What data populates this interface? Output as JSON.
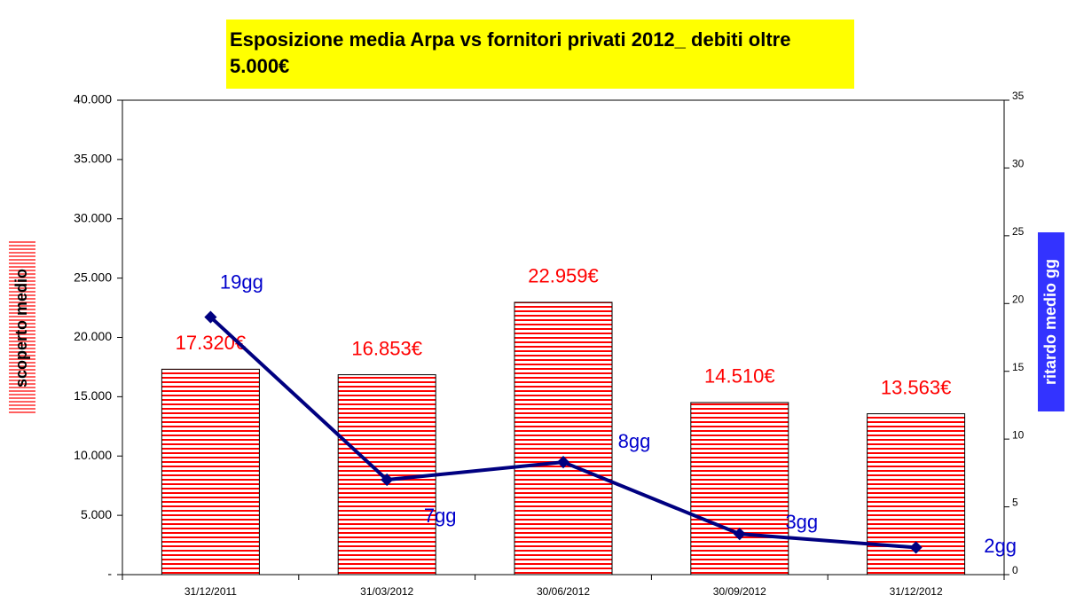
{
  "chart_data": {
    "type": "bar",
    "title": "Esposizione media Arpa vs fornitori privati 2012_ debiti oltre 5.000€",
    "y_label": "scoperto medio",
    "y2_label": "ritardo medio gg",
    "categories": [
      "31/12/2011",
      "31/03/2012",
      "30/06/2012",
      "30/09/2012",
      "31/12/2012"
    ],
    "series": [
      {
        "type": "bar",
        "color": "#ff0000",
        "values": [
          17320,
          16853,
          22959,
          14510,
          13563
        ],
        "value_labels": [
          "17.320€",
          "16.853€",
          "22.959€",
          "14.510€",
          "13.563€"
        ]
      },
      {
        "type": "line",
        "axis": "y2",
        "color": "#000080",
        "values": [
          19,
          7,
          8.3,
          3,
          2
        ],
        "value_labels": [
          "19gg",
          "7gg",
          "8gg",
          "3gg",
          "2gg"
        ]
      }
    ],
    "ylim": [
      0,
      40000
    ],
    "yticks": [
      {
        "value": 0,
        "label": "-"
      },
      {
        "value": 5000,
        "label": "5.000"
      },
      {
        "value": 10000,
        "label": "10.000"
      },
      {
        "value": 15000,
        "label": "15.000"
      },
      {
        "value": 20000,
        "label": "20.000"
      },
      {
        "value": 25000,
        "label": "25.000"
      },
      {
        "value": 30000,
        "label": "30.000"
      },
      {
        "value": 35000,
        "label": "35.000"
      },
      {
        "value": 40000,
        "label": "40.000"
      }
    ],
    "y2lim": [
      0,
      35
    ],
    "y2ticks": [
      0,
      5,
      10,
      15,
      20,
      25,
      30,
      35
    ]
  }
}
